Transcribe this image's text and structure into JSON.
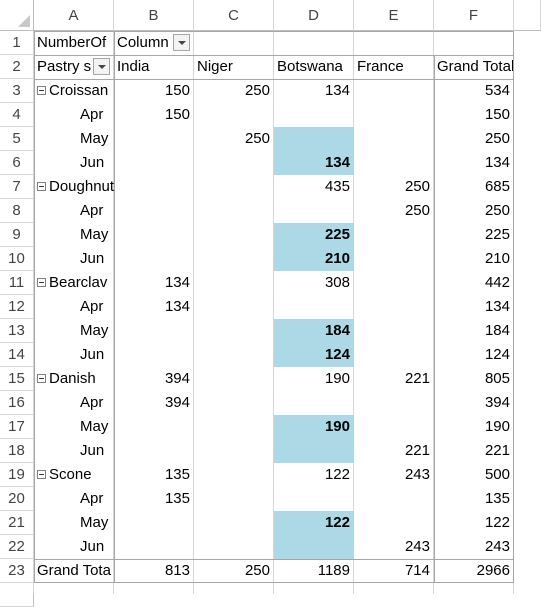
{
  "columns": [
    "A",
    "B",
    "C",
    "D",
    "E",
    "F"
  ],
  "rows": [
    "1",
    "2",
    "3",
    "4",
    "5",
    "6",
    "7",
    "8",
    "9",
    "10",
    "11",
    "12",
    "13",
    "14",
    "15",
    "16",
    "17",
    "18",
    "19",
    "20",
    "21",
    "22",
    "23",
    ""
  ],
  "pivot": {
    "values_label": "NumberOf",
    "column_labels": "Column",
    "row_field": "Pastry s",
    "headers": [
      "India",
      "Niger",
      "Botswana",
      "France",
      "Grand Total"
    ],
    "groups": [
      {
        "name": "Croissan",
        "totals": [
          "150",
          "250",
          "134",
          "",
          "534"
        ],
        "items": [
          {
            "month": "Apr",
            "values": [
              "150",
              "",
              "",
              "",
              "150"
            ]
          },
          {
            "month": "May",
            "values": [
              "",
              "250",
              "",
              "",
              "250"
            ]
          },
          {
            "month": "Jun",
            "values": [
              "",
              "",
              "134",
              "",
              "134"
            ]
          }
        ]
      },
      {
        "name": "Doughnut",
        "totals": [
          "",
          "",
          "435",
          "250",
          "685"
        ],
        "items": [
          {
            "month": "Apr",
            "values": [
              "",
              "",
              "",
              "250",
              "250"
            ]
          },
          {
            "month": "May",
            "values": [
              "",
              "",
              "225",
              "",
              "225"
            ]
          },
          {
            "month": "Jun",
            "values": [
              "",
              "",
              "210",
              "",
              "210"
            ]
          }
        ]
      },
      {
        "name": "Bearclav",
        "totals": [
          "134",
          "",
          "308",
          "",
          "442"
        ],
        "items": [
          {
            "month": "Apr",
            "values": [
              "134",
              "",
              "",
              "",
              "134"
            ]
          },
          {
            "month": "May",
            "values": [
              "",
              "",
              "184",
              "",
              "184"
            ]
          },
          {
            "month": "Jun",
            "values": [
              "",
              "",
              "124",
              "",
              "124"
            ]
          }
        ]
      },
      {
        "name": "Danish",
        "totals": [
          "394",
          "",
          "190",
          "221",
          "805"
        ],
        "items": [
          {
            "month": "Apr",
            "values": [
              "394",
              "",
              "",
              "",
              "394"
            ]
          },
          {
            "month": "May",
            "values": [
              "",
              "",
              "190",
              "",
              "190"
            ]
          },
          {
            "month": "Jun",
            "values": [
              "",
              "",
              "",
              "221",
              "221"
            ]
          }
        ]
      },
      {
        "name": "Scone",
        "totals": [
          "135",
          "",
          "122",
          "243",
          "500"
        ],
        "items": [
          {
            "month": "Apr",
            "values": [
              "135",
              "",
              "",
              "",
              "135"
            ]
          },
          {
            "month": "May",
            "values": [
              "",
              "",
              "122",
              "",
              "122"
            ]
          },
          {
            "month": "Jun",
            "values": [
              "",
              "",
              "",
              "243",
              "243"
            ]
          }
        ]
      }
    ],
    "grand_total_label": "Grand Tota",
    "grand_totals": [
      "813",
      "250",
      "1189",
      "714",
      "2966"
    ]
  },
  "highlight_color": "#add8e6"
}
